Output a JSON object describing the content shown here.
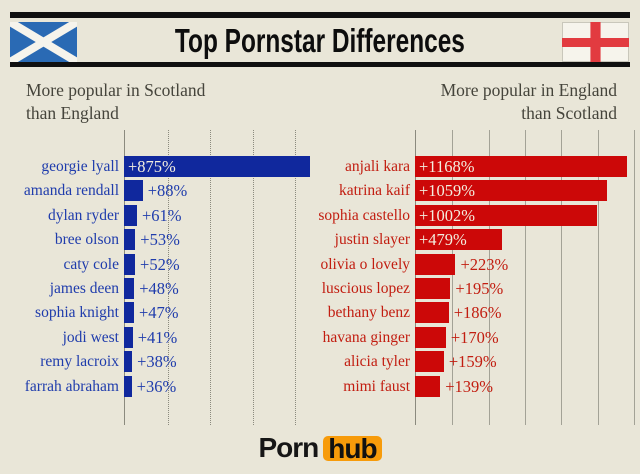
{
  "header": {
    "title": "Top Pornstar Differences"
  },
  "flags": {
    "left": "scotland-flag",
    "right": "england-flag",
    "scotland_blue": "#2a6ab4",
    "england_red": "#e23b40",
    "flag_white": "#f6f4ec"
  },
  "subtitles": {
    "left_line1": "More popular in Scotland",
    "left_line2": "than England",
    "right_line1": "More popular in England",
    "right_line2": "than Scotland"
  },
  "logo": {
    "part1": "Porn",
    "part2": "hub",
    "badge_color": "#f79b0a"
  },
  "colors": {
    "background": "#e9e6d8",
    "header_rule": "#101010",
    "subtitle_text": "#45443b",
    "axis_line": "#8b8a7e"
  },
  "chart_data": [
    {
      "type": "bar",
      "orientation": "horizontal",
      "title": "More popular in Scotland than England",
      "categories": [
        "georgie lyall",
        "amanda rendall",
        "dylan ryder",
        "bree olson",
        "caty cole",
        "james deen",
        "sophia knight",
        "jodi west",
        "remy lacroix",
        "farrah abraham"
      ],
      "values": [
        875,
        88,
        61,
        53,
        52,
        48,
        47,
        41,
        38,
        36
      ],
      "value_labels": [
        "+875%",
        "+88%",
        "+61%",
        "+53%",
        "+52%",
        "+48%",
        "+47%",
        "+41%",
        "+38%",
        "+36%"
      ],
      "xlabel": "",
      "ylabel": "",
      "xlim": [
        0,
        875
      ],
      "gridlines_pct": [
        200,
        400,
        600,
        800
      ],
      "grid_style": "dotted",
      "legend": "none",
      "bar_color": "#10289d",
      "text_color": "#1f3cac",
      "inside_value_color": "#f3eedf"
    },
    {
      "type": "bar",
      "orientation": "horizontal",
      "title": "More popular in England than Scotland",
      "categories": [
        "anjali kara",
        "katrina kaif",
        "sophia castello",
        "justin slayer",
        "olivia o lovely",
        "luscious lopez",
        "bethany benz",
        "havana ginger",
        "alicia tyler",
        "mimi faust"
      ],
      "values": [
        1168,
        1059,
        1002,
        479,
        223,
        195,
        186,
        170,
        159,
        139
      ],
      "value_labels": [
        "+1168%",
        "+1059%",
        "+1002%",
        "+479%",
        "+223%",
        "+195%",
        "+186%",
        "+170%",
        "+159%",
        "+139%"
      ],
      "xlabel": "",
      "ylabel": "",
      "xlim": [
        0,
        1168
      ],
      "gridlines_pct": [
        200,
        400,
        600,
        800,
        1000,
        1200
      ],
      "grid_style": "solid",
      "legend": "none",
      "bar_color": "#cc0808",
      "text_color": "#c21d10",
      "inside_value_color": "#f3eedf"
    }
  ]
}
